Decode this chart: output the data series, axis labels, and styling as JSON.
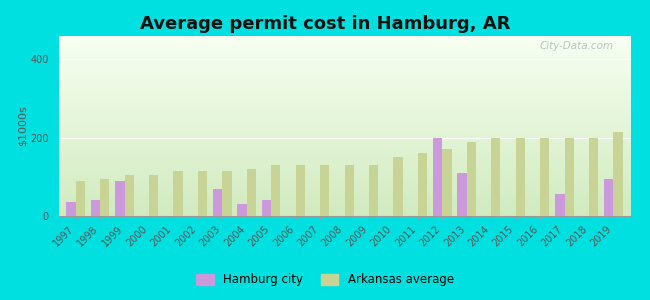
{
  "title": "Average permit cost in Hamburg, AR",
  "ylabel": "$1000s",
  "years": [
    1997,
    1998,
    1999,
    2000,
    2001,
    2002,
    2003,
    2004,
    2005,
    2006,
    2007,
    2008,
    2009,
    2010,
    2011,
    2012,
    2013,
    2014,
    2015,
    2016,
    2017,
    2018,
    2019
  ],
  "hamburg_city": [
    35,
    40,
    90,
    0,
    0,
    0,
    70,
    30,
    40,
    0,
    0,
    0,
    0,
    0,
    0,
    200,
    110,
    0,
    0,
    0,
    55,
    0,
    95
  ],
  "arkansas_avg": [
    90,
    95,
    105,
    105,
    115,
    115,
    115,
    120,
    130,
    130,
    130,
    130,
    130,
    150,
    160,
    170,
    190,
    200,
    200,
    200,
    200,
    200,
    215
  ],
  "hamburg_color": "#cc99dd",
  "arkansas_color": "#c8d496",
  "outer_bg": "#00e0e0",
  "plot_bg": "#e8f2e0",
  "ylim": [
    0,
    460
  ],
  "yticks": [
    0,
    200,
    400
  ],
  "bar_width": 0.38,
  "title_fontsize": 13,
  "axis_label_fontsize": 8,
  "tick_fontsize": 7,
  "legend_fontsize": 8.5
}
